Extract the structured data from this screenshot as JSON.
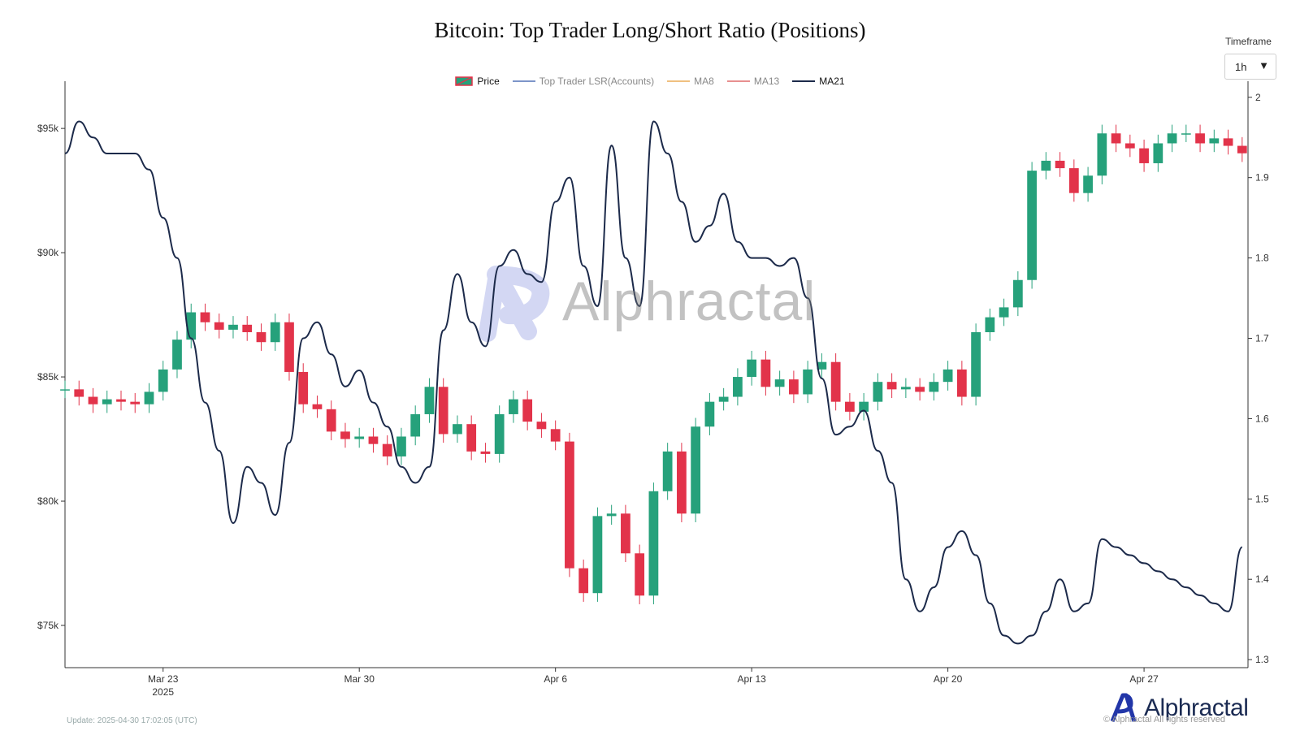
{
  "title": "Bitcoin: Top Trader Long/Short Ratio (Positions)",
  "timeframe": {
    "label": "Timeframe",
    "value": "1h"
  },
  "legend": [
    {
      "name": "Price",
      "color": "#e2334a",
      "kind": "candle"
    },
    {
      "name": "Top Trader LSR(Accounts)",
      "color": "#7d95c9",
      "kind": "line"
    },
    {
      "name": "MA8",
      "color": "#f0c080",
      "kind": "line"
    },
    {
      "name": "MA13",
      "color": "#e88f8f",
      "kind": "line"
    },
    {
      "name": "MA21",
      "color": "#1c2a4a",
      "kind": "line"
    }
  ],
  "watermark": "Alphractal",
  "brand": "Alphractal",
  "update_text": "Update: 2025-04-30 17:02:05 (UTC)",
  "copyright": "© Alphractal All rights reserved",
  "chart_data": {
    "type": "line",
    "x_range": [
      "2025-03-19T12:00",
      "2025-04-30T17:00"
    ],
    "x_ticks": [
      {
        "date": "2025-03-23",
        "label": "Mar 23",
        "sublabel": "2025"
      },
      {
        "date": "2025-03-30",
        "label": "Mar 30",
        "sublabel": ""
      },
      {
        "date": "2025-04-06",
        "label": "Apr 6",
        "sublabel": ""
      },
      {
        "date": "2025-04-13",
        "label": "Apr 13",
        "sublabel": ""
      },
      {
        "date": "2025-04-20",
        "label": "Apr 20",
        "sublabel": ""
      },
      {
        "date": "2025-04-27",
        "label": "Apr 27",
        "sublabel": ""
      }
    ],
    "y_left": {
      "range": [
        73300,
        96900
      ],
      "ticks": [
        {
          "value": 75000,
          "label": "$75k"
        },
        {
          "value": 80000,
          "label": "$80k"
        },
        {
          "value": 85000,
          "label": "$85k"
        },
        {
          "value": 90000,
          "label": "$90k"
        },
        {
          "value": 95000,
          "label": "$95k"
        }
      ]
    },
    "y_right": {
      "range": [
        1.29,
        2.02
      ],
      "ticks": [
        {
          "value": 1.3,
          "label": "1.3"
        },
        {
          "value": 1.4,
          "label": "1.4"
        },
        {
          "value": 1.5,
          "label": "1.5"
        },
        {
          "value": 1.6,
          "label": "1.6"
        },
        {
          "value": 1.7,
          "label": "1.7"
        },
        {
          "value": 1.8,
          "label": "1.8"
        },
        {
          "value": 1.9,
          "label": "1.9"
        },
        {
          "value": 2.0,
          "label": "2"
        }
      ]
    },
    "up_color": "#26a17b",
    "down_color": "#e2334a",
    "series": [
      {
        "name": "Price",
        "axis": "left",
        "x": [
          "2025-03-19T12:00",
          "2025-03-20T00:00",
          "2025-03-20T12:00",
          "2025-03-21T00:00",
          "2025-03-21T12:00",
          "2025-03-22T00:00",
          "2025-03-22T12:00",
          "2025-03-23T00:00",
          "2025-03-23T12:00",
          "2025-03-24T00:00",
          "2025-03-24T12:00",
          "2025-03-25T00:00",
          "2025-03-25T12:00",
          "2025-03-26T00:00",
          "2025-03-26T12:00",
          "2025-03-27T00:00",
          "2025-03-27T12:00",
          "2025-03-28T00:00",
          "2025-03-28T12:00",
          "2025-03-29T00:00",
          "2025-03-29T12:00",
          "2025-03-30T00:00",
          "2025-03-30T12:00",
          "2025-03-31T00:00",
          "2025-03-31T12:00",
          "2025-04-01T00:00",
          "2025-04-01T12:00",
          "2025-04-02T00:00",
          "2025-04-02T12:00",
          "2025-04-03T00:00",
          "2025-04-03T12:00",
          "2025-04-04T00:00",
          "2025-04-04T12:00",
          "2025-04-05T00:00",
          "2025-04-05T12:00",
          "2025-04-06T00:00",
          "2025-04-06T12:00",
          "2025-04-07T00:00",
          "2025-04-07T12:00",
          "2025-04-08T00:00",
          "2025-04-08T12:00",
          "2025-04-09T00:00",
          "2025-04-09T12:00",
          "2025-04-10T00:00",
          "2025-04-10T12:00",
          "2025-04-11T00:00",
          "2025-04-11T12:00",
          "2025-04-12T00:00",
          "2025-04-12T12:00",
          "2025-04-13T00:00",
          "2025-04-13T12:00",
          "2025-04-14T00:00",
          "2025-04-14T12:00",
          "2025-04-15T00:00",
          "2025-04-15T12:00",
          "2025-04-16T00:00",
          "2025-04-16T12:00",
          "2025-04-17T00:00",
          "2025-04-17T12:00",
          "2025-04-18T00:00",
          "2025-04-18T12:00",
          "2025-04-19T00:00",
          "2025-04-19T12:00",
          "2025-04-20T00:00",
          "2025-04-20T12:00",
          "2025-04-21T00:00",
          "2025-04-21T12:00",
          "2025-04-22T00:00",
          "2025-04-22T12:00",
          "2025-04-23T00:00",
          "2025-04-23T12:00",
          "2025-04-24T00:00",
          "2025-04-24T12:00",
          "2025-04-25T00:00",
          "2025-04-25T12:00",
          "2025-04-26T00:00",
          "2025-04-26T12:00",
          "2025-04-27T00:00",
          "2025-04-27T12:00",
          "2025-04-28T00:00",
          "2025-04-28T12:00",
          "2025-04-29T00:00",
          "2025-04-29T12:00",
          "2025-04-30T00:00",
          "2025-04-30T12:00"
        ],
        "values": [
          84500,
          84200,
          83900,
          84100,
          84000,
          83900,
          84400,
          85300,
          86500,
          87600,
          87200,
          86900,
          87100,
          86800,
          86400,
          87200,
          85200,
          83900,
          83700,
          82800,
          82500,
          82600,
          82300,
          81800,
          82600,
          83500,
          84600,
          82700,
          83100,
          82000,
          81900,
          83500,
          84100,
          83200,
          82900,
          82400,
          77300,
          76300,
          79400,
          79500,
          77900,
          76200,
          80400,
          82000,
          79500,
          83000,
          84000,
          84200,
          85000,
          85700,
          84600,
          84900,
          84300,
          85300,
          85600,
          84000,
          83600,
          84000,
          84800,
          84500,
          84600,
          84400,
          84800,
          85300,
          84200,
          86800,
          87400,
          87800,
          88900,
          93300,
          93700,
          93400,
          92400,
          93100,
          94800,
          94400,
          94200,
          93600,
          94400,
          94800,
          94800,
          94400,
          94600,
          94300,
          94000
        ]
      },
      {
        "name": "MA21",
        "axis": "right",
        "x": [
          "2025-03-19T12:00",
          "2025-03-20T00:00",
          "2025-03-20T12:00",
          "2025-03-21T00:00",
          "2025-03-21T12:00",
          "2025-03-22T00:00",
          "2025-03-22T12:00",
          "2025-03-23T00:00",
          "2025-03-23T12:00",
          "2025-03-24T00:00",
          "2025-03-24T12:00",
          "2025-03-25T00:00",
          "2025-03-25T12:00",
          "2025-03-26T00:00",
          "2025-03-26T12:00",
          "2025-03-27T00:00",
          "2025-03-27T12:00",
          "2025-03-28T00:00",
          "2025-03-28T12:00",
          "2025-03-29T00:00",
          "2025-03-29T12:00",
          "2025-03-30T00:00",
          "2025-03-30T12:00",
          "2025-03-31T00:00",
          "2025-03-31T12:00",
          "2025-04-01T00:00",
          "2025-04-01T12:00",
          "2025-04-02T00:00",
          "2025-04-02T12:00",
          "2025-04-03T00:00",
          "2025-04-03T12:00",
          "2025-04-04T00:00",
          "2025-04-04T12:00",
          "2025-04-05T00:00",
          "2025-04-05T12:00",
          "2025-04-06T00:00",
          "2025-04-06T12:00",
          "2025-04-07T00:00",
          "2025-04-07T12:00",
          "2025-04-08T00:00",
          "2025-04-08T12:00",
          "2025-04-09T00:00",
          "2025-04-09T12:00",
          "2025-04-10T00:00",
          "2025-04-10T12:00",
          "2025-04-11T00:00",
          "2025-04-11T12:00",
          "2025-04-12T00:00",
          "2025-04-12T12:00",
          "2025-04-13T00:00",
          "2025-04-13T12:00",
          "2025-04-14T00:00",
          "2025-04-14T12:00",
          "2025-04-15T00:00",
          "2025-04-15T12:00",
          "2025-04-16T00:00",
          "2025-04-16T12:00",
          "2025-04-17T00:00",
          "2025-04-17T12:00",
          "2025-04-18T00:00",
          "2025-04-18T12:00",
          "2025-04-19T00:00",
          "2025-04-19T12:00",
          "2025-04-20T00:00",
          "2025-04-20T12:00",
          "2025-04-21T00:00",
          "2025-04-21T12:00",
          "2025-04-22T00:00",
          "2025-04-22T12:00",
          "2025-04-23T00:00",
          "2025-04-23T12:00",
          "2025-04-24T00:00",
          "2025-04-24T12:00",
          "2025-04-25T00:00",
          "2025-04-25T12:00",
          "2025-04-26T00:00",
          "2025-04-26T12:00",
          "2025-04-27T00:00",
          "2025-04-27T12:00",
          "2025-04-28T00:00",
          "2025-04-28T12:00",
          "2025-04-29T00:00",
          "2025-04-29T12:00",
          "2025-04-30T00:00",
          "2025-04-30T12:00"
        ],
        "values": [
          1.93,
          1.97,
          1.95,
          1.93,
          1.93,
          1.93,
          1.91,
          1.85,
          1.8,
          1.7,
          1.62,
          1.56,
          1.47,
          1.54,
          1.52,
          1.48,
          1.57,
          1.7,
          1.72,
          1.68,
          1.64,
          1.66,
          1.62,
          1.59,
          1.54,
          1.52,
          1.54,
          1.71,
          1.78,
          1.72,
          1.69,
          1.79,
          1.81,
          1.78,
          1.77,
          1.87,
          1.9,
          1.79,
          1.74,
          1.94,
          1.8,
          1.74,
          1.97,
          1.93,
          1.87,
          1.82,
          1.84,
          1.88,
          1.82,
          1.8,
          1.8,
          1.79,
          1.8,
          1.75,
          1.65,
          1.58,
          1.59,
          1.61,
          1.56,
          1.52,
          1.4,
          1.36,
          1.39,
          1.44,
          1.46,
          1.43,
          1.37,
          1.33,
          1.32,
          1.33,
          1.36,
          1.4,
          1.36,
          1.37,
          1.45,
          1.44,
          1.43,
          1.42,
          1.41,
          1.4,
          1.39,
          1.38,
          1.37,
          1.36,
          1.44
        ]
      }
    ]
  }
}
